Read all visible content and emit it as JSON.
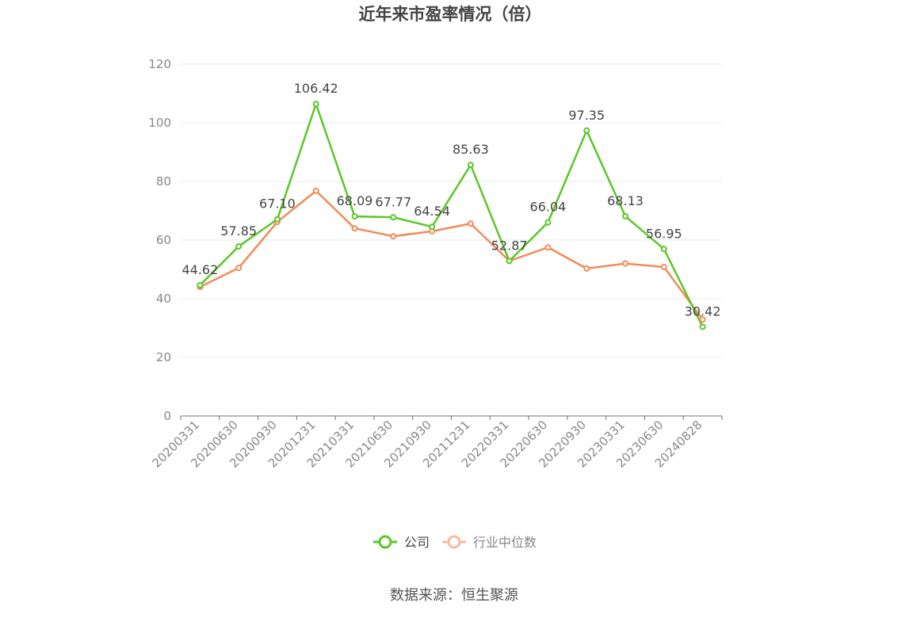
{
  "chart_data": {
    "type": "line",
    "title": "近年来市盈率情况（倍）",
    "categories": [
      "20200331",
      "20200630",
      "20200930",
      "20201231",
      "20210331",
      "20210630",
      "20210930",
      "20211231",
      "20220331",
      "20220630",
      "20220930",
      "20230331",
      "20230630",
      "20240828"
    ],
    "series": [
      {
        "name": "公司",
        "color": "#5ac726",
        "values": [
          44.62,
          57.85,
          67.1,
          106.42,
          68.09,
          67.77,
          64.54,
          85.63,
          52.87,
          66.04,
          97.35,
          68.13,
          56.95,
          30.42
        ],
        "labels_shown": true
      },
      {
        "name": "行业中位数",
        "color": "#f38a58",
        "legend_color": "#f7b9a0",
        "values": [
          44.0,
          50.5,
          66.2,
          76.8,
          64.0,
          61.3,
          63.0,
          65.6,
          52.9,
          57.5,
          50.3,
          52.0,
          50.8,
          32.9
        ],
        "labels_shown": false
      }
    ],
    "ylim": [
      0,
      120
    ],
    "yticks": [
      0,
      20,
      40,
      60,
      80,
      100,
      120
    ],
    "grid": true,
    "legend_position": "bottom-center"
  },
  "source_text": "数据来源：恒生聚源",
  "colors": {
    "title": "#444444",
    "axis_text": "#888888",
    "grid": "#e6e9f0",
    "axis_line": "#6e7079",
    "label_text": "#444444"
  }
}
